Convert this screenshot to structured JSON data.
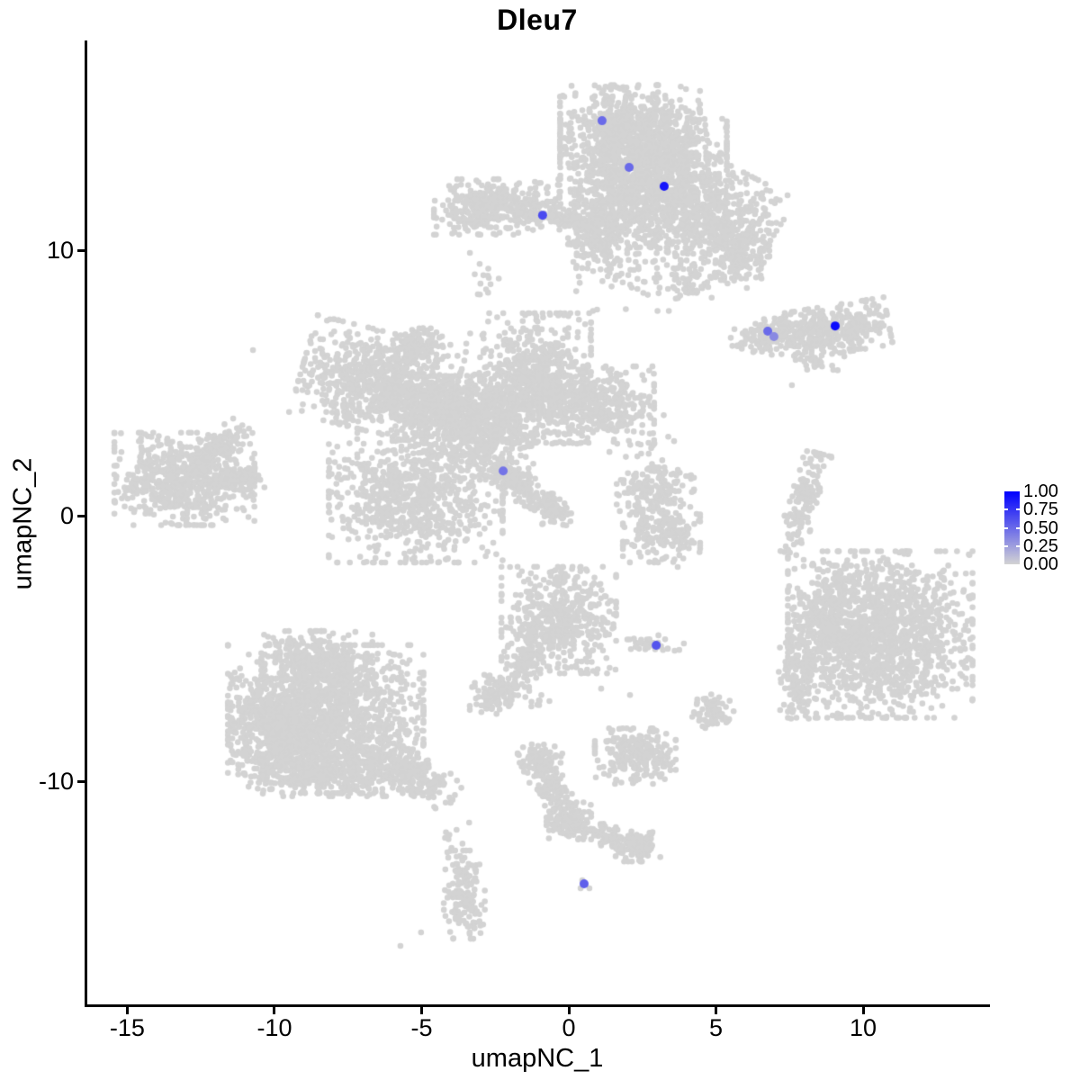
{
  "chart_data": {
    "type": "scatter",
    "title": "Dleu7",
    "xlabel": "umapNC_1",
    "ylabel": "umapNC_2",
    "xlim": [
      -16.42,
      14.31
    ],
    "ylim": [
      -18.47,
      17.9
    ],
    "grid": false,
    "x_ticks": [
      {
        "label": "-15",
        "value": -15
      },
      {
        "label": "-10",
        "value": -10
      },
      {
        "label": "-5",
        "value": -5
      },
      {
        "label": "0",
        "value": 0
      },
      {
        "label": "5",
        "value": 5
      },
      {
        "label": "10",
        "value": 10
      }
    ],
    "y_ticks": [
      {
        "label": "10",
        "value": 10
      },
      {
        "label": "0",
        "value": 0
      },
      {
        "label": "-10",
        "value": -10
      }
    ],
    "colors": {
      "low": "#D3D3D3",
      "high": "#0000FF",
      "cluster": "#D3D3D3",
      "axis": "#000000",
      "background": "#FFFFFF"
    },
    "legend": {
      "position": "right",
      "breaks": [
        {
          "label": "1.00",
          "value": 1.0
        },
        {
          "label": "0.75",
          "value": 0.75
        },
        {
          "label": "0.50",
          "value": 0.5
        },
        {
          "label": "0.25",
          "value": 0.25
        },
        {
          "label": "0.00",
          "value": 0.0
        }
      ]
    },
    "clusters": [
      {
        "name": "top-center",
        "blobs": [
          {
            "x": 2.08,
            "y": 14.68,
            "sx": 1.16,
            "sy": 0.75,
            "rot": 0,
            "n": 550
          },
          {
            "x": 2.54,
            "y": 13.49,
            "sx": 1.38,
            "sy": 0.85,
            "rot": 0,
            "n": 700
          },
          {
            "x": 2.08,
            "y": 11.9,
            "sx": 0.92,
            "sy": 0.88,
            "rot": 0,
            "n": 450
          },
          {
            "x": 4.59,
            "y": 11.46,
            "sx": 1.22,
            "sy": 0.95,
            "rot": -30,
            "n": 700
          },
          {
            "x": 5.81,
            "y": 9.83,
            "sx": 0.49,
            "sy": 0.61,
            "rot": 0,
            "n": 160
          },
          {
            "x": 0.98,
            "y": 10.54,
            "sx": 0.49,
            "sy": 0.68,
            "rot": 0,
            "n": 200
          },
          {
            "x": 2.63,
            "y": 9.25,
            "sx": 1.16,
            "sy": 0.75,
            "rot": 0,
            "n": 90
          },
          {
            "x": 4.22,
            "y": 8.85,
            "sx": 0.31,
            "sy": 0.31,
            "rot": 0,
            "n": 40
          }
        ]
      },
      {
        "name": "top-left-arm",
        "blobs": [
          {
            "x": -2.45,
            "y": 11.63,
            "sx": 1.04,
            "sy": 0.51,
            "rot": 0,
            "n": 400
          },
          {
            "x": -0.12,
            "y": 11.15,
            "sx": 0.8,
            "sy": 0.2,
            "rot": -13,
            "n": 110
          },
          {
            "x": -2.81,
            "y": 8.85,
            "sx": 0.21,
            "sy": 0.31,
            "rot": 0,
            "n": 12
          }
        ]
      },
      {
        "name": "right-elongated",
        "blobs": [
          {
            "x": 8.81,
            "y": 6.98,
            "sx": 1.01,
            "sy": 0.44,
            "rot": 10,
            "n": 400
          },
          {
            "x": 6.76,
            "y": 6.78,
            "sx": 0.61,
            "sy": 0.27,
            "rot": 10,
            "n": 130
          },
          {
            "x": 8.56,
            "y": 5.83,
            "sx": 0.28,
            "sy": 0.2,
            "rot": 0,
            "n": 20
          }
        ]
      },
      {
        "name": "center-left-spider",
        "blobs": [
          {
            "x": -6.48,
            "y": 5.05,
            "sx": 1.28,
            "sy": 0.92,
            "rot": -15,
            "n": 750
          },
          {
            "x": -5.17,
            "y": 6.41,
            "sx": 0.34,
            "sy": 0.51,
            "rot": -44,
            "n": 110
          },
          {
            "x": -4.43,
            "y": 4.07,
            "sx": 0.73,
            "sy": 0.58,
            "rot": 0,
            "n": 280
          },
          {
            "x": -3.03,
            "y": 3.53,
            "sx": 0.89,
            "sy": 0.85,
            "rot": 0,
            "n": 480
          },
          {
            "x": -1.07,
            "y": 5.19,
            "sx": 0.89,
            "sy": 1.19,
            "rot": 0,
            "n": 650
          },
          {
            "x": 0.95,
            "y": 4.17,
            "sx": 0.95,
            "sy": 0.71,
            "rot": 0,
            "n": 420
          },
          {
            "x": -5.2,
            "y": 0.68,
            "sx": 1.44,
            "sy": 1.19,
            "rot": 0,
            "n": 850
          },
          {
            "x": -1.77,
            "y": 1.25,
            "sx": 0.83,
            "sy": 0.27,
            "rot": -43,
            "n": 170
          },
          {
            "x": -0.46,
            "y": 0.2,
            "sx": 0.4,
            "sy": 0.2,
            "rot": -43,
            "n": 70
          },
          {
            "x": -2.26,
            "y": 4.92,
            "sx": 0.86,
            "sy": 0.95,
            "rot": 0,
            "n": 80
          },
          {
            "x": -3.43,
            "y": 2.2,
            "sx": 0.73,
            "sy": 0.61,
            "rot": 0,
            "n": 70
          }
        ]
      },
      {
        "name": "far-left",
        "blobs": [
          {
            "x": -13.06,
            "y": 1.39,
            "sx": 1.16,
            "sy": 0.85,
            "rot": 0,
            "n": 650
          },
          {
            "x": -11.16,
            "y": 1.39,
            "sx": 0.4,
            "sy": 0.2,
            "rot": 0,
            "n": 80
          },
          {
            "x": -11.77,
            "y": 2.71,
            "sx": 0.52,
            "sy": 0.27,
            "rot": 36,
            "n": 100
          }
        ]
      },
      {
        "name": "mid-right-small",
        "blobs": [
          {
            "x": 2.94,
            "y": 0.98,
            "sx": 0.64,
            "sy": 0.41,
            "rot": 0,
            "n": 150
          },
          {
            "x": 3.15,
            "y": -0.71,
            "sx": 0.64,
            "sy": 0.51,
            "rot": 0,
            "n": 190
          },
          {
            "x": 2.45,
            "y": 2.41,
            "sx": 0.55,
            "sy": 0.68,
            "rot": 0,
            "n": 25
          }
        ]
      },
      {
        "name": "right-strip",
        "blobs": [
          {
            "x": 7.98,
            "y": 0.47,
            "sx": 0.24,
            "sy": 0.95,
            "rot": -16,
            "n": 140
          }
        ]
      },
      {
        "name": "bottom-right-large",
        "blobs": [
          {
            "x": 10.58,
            "y": -4.47,
            "sx": 1.53,
            "sy": 1.53,
            "rot": 0,
            "n": 1500
          },
          {
            "x": 7.77,
            "y": -5.9,
            "sx": 0.31,
            "sy": 0.85,
            "rot": 0,
            "n": 130
          },
          {
            "x": 8.96,
            "y": -3.97,
            "sx": 0.55,
            "sy": 1.02,
            "rot": 0,
            "n": 200
          }
        ]
      },
      {
        "name": "center-low",
        "blobs": [
          {
            "x": -0.34,
            "y": -3.93,
            "sx": 0.95,
            "sy": 0.98,
            "rot": 0,
            "n": 520
          },
          {
            "x": -1.5,
            "y": -5.69,
            "sx": 0.28,
            "sy": 0.51,
            "rot": -29,
            "n": 80
          },
          {
            "x": -2.42,
            "y": -6.75,
            "sx": 0.46,
            "sy": 0.37,
            "rot": 0,
            "n": 120
          },
          {
            "x": -1.07,
            "y": -6.98,
            "sx": 0.21,
            "sy": 0.14,
            "rot": 0,
            "n": 8
          }
        ]
      },
      {
        "name": "tiny-mid",
        "blobs": [
          {
            "x": 2.87,
            "y": -4.85,
            "sx": 0.43,
            "sy": 0.17,
            "rot": 0,
            "n": 35
          },
          {
            "x": 4.83,
            "y": -7.36,
            "sx": 0.31,
            "sy": 0.31,
            "rot": 0,
            "n": 70
          }
        ]
      },
      {
        "name": "bottom-left-large",
        "blobs": [
          {
            "x": -8.56,
            "y": -5.53,
            "sx": 0.92,
            "sy": 0.58,
            "rot": 0,
            "n": 320
          },
          {
            "x": -8.26,
            "y": -7.66,
            "sx": 1.62,
            "sy": 1.36,
            "rot": 0,
            "n": 1400
          },
          {
            "x": -9.79,
            "y": -8.1,
            "sx": 0.83,
            "sy": 0.95,
            "rot": 0,
            "n": 550
          },
          {
            "x": -7.71,
            "y": -9.66,
            "sx": 1.31,
            "sy": 0.44,
            "rot": 0,
            "n": 300
          },
          {
            "x": -5.32,
            "y": -9.69,
            "sx": 0.83,
            "sy": 0.34,
            "rot": -33,
            "n": 200
          },
          {
            "x": -3.88,
            "y": -12.03,
            "sx": 0.28,
            "sy": 0.68,
            "rot": 0,
            "n": 10
          }
        ]
      },
      {
        "name": "bottom-center-y",
        "blobs": [
          {
            "x": -0.98,
            "y": -9.12,
            "sx": 0.37,
            "sy": 0.27,
            "rot": 0,
            "n": 80
          },
          {
            "x": -0.58,
            "y": -10.34,
            "sx": 0.28,
            "sy": 0.68,
            "rot": 24,
            "n": 140
          },
          {
            "x": 0.0,
            "y": -11.49,
            "sx": 0.37,
            "sy": 0.34,
            "rot": 0,
            "n": 110
          },
          {
            "x": 1.19,
            "y": -12.03,
            "sx": 0.7,
            "sy": 0.2,
            "rot": -17,
            "n": 100
          },
          {
            "x": 2.35,
            "y": -12.47,
            "sx": 0.37,
            "sy": 0.27,
            "rot": 0,
            "n": 90
          }
        ]
      },
      {
        "name": "bottom-center-blob",
        "blobs": [
          {
            "x": 2.26,
            "y": -9.05,
            "sx": 0.67,
            "sy": 0.51,
            "rot": 0,
            "n": 250
          }
        ]
      },
      {
        "name": "bottom-small",
        "blobs": [
          {
            "x": -3.55,
            "y": -14.27,
            "sx": 0.34,
            "sy": 0.81,
            "rot": 0,
            "n": 150
          }
        ]
      }
    ],
    "background_singles": [
      [
        -3.36,
        9.9
      ],
      [
        -3.09,
        8.34
      ],
      [
        -3.88,
        10.68
      ],
      [
        7.58,
        4.92
      ],
      [
        9.36,
        6.0
      ],
      [
        9.05,
        6.2
      ],
      [
        -10.73,
        6.24
      ],
      [
        7.89,
        -0.92
      ],
      [
        7.98,
        -1.66
      ],
      [
        8.75,
        -2.44
      ],
      [
        9.2,
        -3.22
      ],
      [
        8.38,
        -3.66
      ],
      [
        8.84,
        -4.27
      ],
      [
        9.45,
        -1.86
      ],
      [
        2.11,
        -5.02
      ],
      [
        3.91,
        -4.81
      ],
      [
        -5.02,
        -15.69
      ],
      [
        -5.72,
        -16.2
      ],
      [
        5.6,
        -7.36
      ],
      [
        3.7,
        -1.93
      ],
      [
        2.08,
        -6.75
      ],
      [
        1.1,
        -6.51
      ],
      [
        0.46,
        -13.73
      ],
      [
        0.7,
        -14.03
      ],
      [
        0.4,
        -14.03
      ]
    ],
    "expressing_cells": [
      {
        "x": 1.13,
        "y": 14.88,
        "value": 0.5
      },
      {
        "x": 2.05,
        "y": 13.12,
        "value": 0.5
      },
      {
        "x": 3.24,
        "y": 12.41,
        "value": 0.9
      },
      {
        "x": -0.89,
        "y": 11.32,
        "value": 0.65
      },
      {
        "x": 6.76,
        "y": 6.95,
        "value": 0.5
      },
      {
        "x": 6.97,
        "y": 6.75,
        "value": 0.35
      },
      {
        "x": 9.05,
        "y": 7.15,
        "value": 0.95
      },
      {
        "x": -2.23,
        "y": 1.69,
        "value": 0.45
      },
      {
        "x": 2.97,
        "y": -4.88,
        "value": 0.6
      },
      {
        "x": 0.52,
        "y": -13.86,
        "value": 0.55
      }
    ]
  }
}
